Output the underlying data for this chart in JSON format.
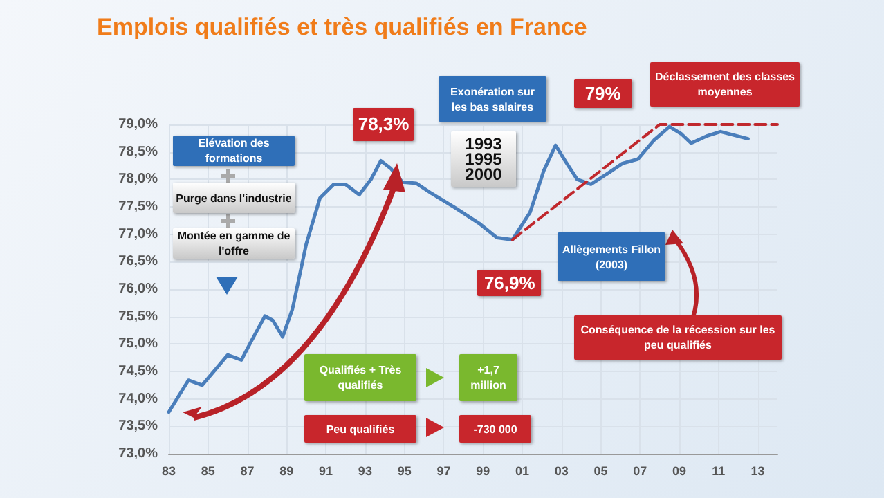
{
  "chart_data": {
    "type": "line",
    "title": "Emplois qualifiés et très qualifiés en France",
    "x": [
      1983.0,
      1984.0,
      1984.7,
      1985.2,
      1986.0,
      1986.7,
      1987.2,
      1987.9,
      1988.3,
      1988.8,
      1989.3,
      1990.0,
      1990.7,
      1991.4,
      1992.0,
      1992.7,
      1993.3,
      1993.8,
      1994.3,
      1994.9,
      1995.6,
      1996.4,
      1997.6,
      1998.8,
      1999.7,
      2000.5,
      2001.4,
      2002.1,
      2002.7,
      2003.2,
      2003.8,
      2004.5,
      2005.4,
      2006.1,
      2006.9,
      2007.7,
      2008.5,
      2009.1,
      2009.6,
      2010.4,
      2011.1,
      2012.5
    ],
    "series": [
      {
        "color": "#4a7ebb",
        "values": [
          73.76,
          74.34,
          74.25,
          74.46,
          74.8,
          74.71,
          75.05,
          75.51,
          75.43,
          75.13,
          75.64,
          76.82,
          77.66,
          77.91,
          77.91,
          77.72,
          78.0,
          78.34,
          78.2,
          77.95,
          77.93,
          77.74,
          77.48,
          77.2,
          76.94,
          76.9,
          77.4,
          78.16,
          78.62,
          78.33,
          78.0,
          77.91,
          78.12,
          78.29,
          78.37,
          78.71,
          78.96,
          78.83,
          78.66,
          78.79,
          78.87,
          78.74
        ]
      },
      {
        "type": "line",
        "color": "#c0282d",
        "line_style": "dashed",
        "x": [
          2000.5,
          2008.0,
          2014.0
        ],
        "values": [
          76.9,
          79.0,
          79.0
        ]
      }
    ],
    "xlim": [
      1983,
      2014
    ],
    "xticks": [
      {
        "value": 1983,
        "label": "83"
      },
      {
        "value": 1985,
        "label": "85"
      },
      {
        "value": 1987,
        "label": "87"
      },
      {
        "value": 1989,
        "label": "89"
      },
      {
        "value": 1991,
        "label": "91"
      },
      {
        "value": 1993,
        "label": "93"
      },
      {
        "value": 1995,
        "label": "95"
      },
      {
        "value": 1997,
        "label": "97"
      },
      {
        "value": 1999,
        "label": "99"
      },
      {
        "value": 2001,
        "label": "01"
      },
      {
        "value": 2003,
        "label": "03"
      },
      {
        "value": 2005,
        "label": "05"
      },
      {
        "value": 2007,
        "label": "07"
      },
      {
        "value": 2009,
        "label": "09"
      },
      {
        "value": 2011,
        "label": "11"
      },
      {
        "value": 2013,
        "label": "13"
      }
    ],
    "ylim": [
      73,
      79
    ],
    "yticks": [
      {
        "value": 73,
        "label": "73,0%"
      },
      {
        "value": 73.5,
        "label": "73,5%"
      },
      {
        "value": 74,
        "label": "74,0%"
      },
      {
        "value": 74.5,
        "label": "74,5%"
      },
      {
        "value": 75,
        "label": "75,0%"
      },
      {
        "value": 75.5,
        "label": "75,5%"
      },
      {
        "value": 76,
        "label": "76,0%"
      },
      {
        "value": 76.5,
        "label": "76,5%"
      },
      {
        "value": 77,
        "label": "77,0%"
      },
      {
        "value": 77.5,
        "label": "77,5%"
      },
      {
        "value": 78,
        "label": "78,0%"
      },
      {
        "value": 78.5,
        "label": "78,5%"
      },
      {
        "value": 79,
        "label": "79,0%"
      }
    ],
    "grid": true,
    "marker": "none",
    "line_style": "solid",
    "annotations": [
      "Elévation des formations",
      "Purge dans l'industrie",
      "Montée en gamme de l'offre",
      "Exonération sur les bas salaires",
      "1993 1995 2000",
      {
        "text": "78,3%",
        "x": 1993.8,
        "y": 78.3
      },
      {
        "text": "79%",
        "x": 2008.0,
        "y": 79.0
      },
      "Déclassement des classes moyennes",
      "Allègements Fillon (2003)",
      {
        "text": "76,9%",
        "x": 2000.5,
        "y": 76.9
      },
      "Conséquence de la récession sur les peu qualifiés",
      "Qualifiés + Très qualifiés",
      "+1,7 million",
      "Peu qualifiés",
      "-730 000"
    ]
  }
}
